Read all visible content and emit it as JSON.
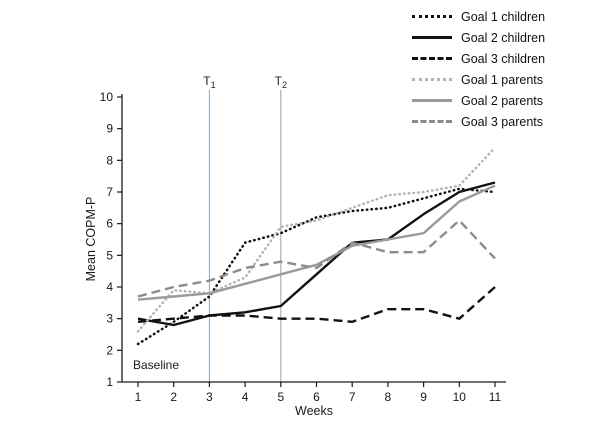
{
  "chart_data": {
    "type": "line",
    "title": "",
    "xlabel": "Weeks",
    "ylabel": "Mean COPM-P",
    "xlim": [
      1,
      11
    ],
    "ylim": [
      1,
      10
    ],
    "xticks": [
      1,
      2,
      3,
      4,
      5,
      6,
      7,
      8,
      9,
      10,
      11
    ],
    "yticks": [
      1,
      2,
      3,
      4,
      5,
      6,
      7,
      8,
      9,
      10
    ],
    "grid": false,
    "legend_position": "top-right",
    "x": [
      1,
      2,
      3,
      4,
      5,
      6,
      7,
      8,
      9,
      10,
      11
    ],
    "annotations": {
      "baseline_label": "Baseline",
      "vlines": [
        {
          "label": "T",
          "sub": "1",
          "week": 3
        },
        {
          "label": "T",
          "sub": "2",
          "week": 5
        }
      ]
    },
    "colors": {
      "axis": "#1a1a1a",
      "timepoint_line": "#8aa7c6",
      "children": "#111111",
      "parents": "#9a9a9a"
    },
    "series": [
      {
        "name": "Goal 1 children",
        "color": "#111111",
        "style": "dotted",
        "values": [
          2.2,
          2.9,
          3.7,
          5.4,
          5.7,
          6.2,
          6.4,
          6.5,
          6.8,
          7.1,
          7.0
        ]
      },
      {
        "name": "Goal 2 children",
        "color": "#111111",
        "style": "solid",
        "values": [
          3.0,
          2.8,
          3.1,
          3.2,
          3.4,
          4.4,
          5.4,
          5.5,
          6.3,
          7.0,
          7.3
        ]
      },
      {
        "name": "Goal 3 children",
        "color": "#111111",
        "style": "dashed",
        "values": [
          2.9,
          3.0,
          3.1,
          3.1,
          3.0,
          3.0,
          2.9,
          3.3,
          3.3,
          3.0,
          4.0
        ]
      },
      {
        "name": "Goal 1 parents",
        "color": "#b3b3b3",
        "style": "dotted",
        "values": [
          2.6,
          3.9,
          3.8,
          4.3,
          5.9,
          6.1,
          6.5,
          6.9,
          7.0,
          7.2,
          8.4
        ]
      },
      {
        "name": "Goal 2 parents",
        "color": "#9a9a9a",
        "style": "solid",
        "values": [
          3.6,
          3.7,
          3.8,
          4.1,
          4.4,
          4.7,
          5.3,
          5.5,
          5.7,
          6.7,
          7.2
        ]
      },
      {
        "name": "Goal 3 parents",
        "color": "#8c8c8c",
        "style": "dashed",
        "values": [
          3.7,
          4.0,
          4.2,
          4.6,
          4.8,
          4.6,
          5.4,
          5.1,
          5.1,
          6.1,
          4.9
        ]
      }
    ]
  }
}
